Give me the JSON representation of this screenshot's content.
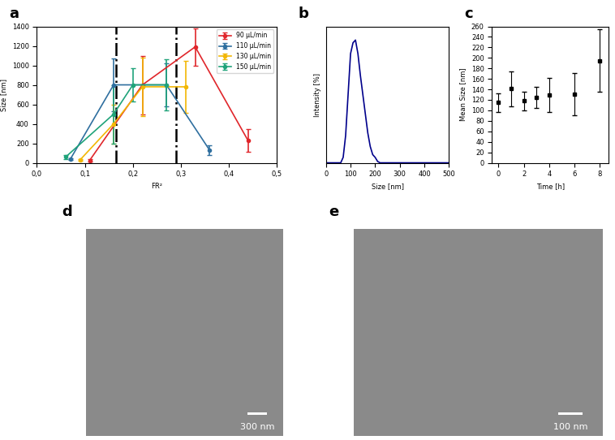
{
  "chart_data": [
    {
      "type": "line",
      "title": "a",
      "x_label": "FR²",
      "y_label": "Size [nm]",
      "xlim": [
        0.0,
        0.5
      ],
      "xticks": [
        {
          "value": 0.0,
          "label": "0,0"
        },
        {
          "value": 0.1,
          "label": "0,1"
        },
        {
          "value": 0.2,
          "label": "0,2"
        },
        {
          "value": 0.3,
          "label": "0,3"
        },
        {
          "value": 0.4,
          "label": "0,4"
        },
        {
          "value": 0.5,
          "label": "0,5"
        }
      ],
      "ylim": [
        0,
        1400
      ],
      "yticks": [
        0,
        200,
        400,
        600,
        800,
        1000,
        1200,
        1400
      ],
      "legend": "upper right",
      "marker": "o",
      "line_style": "solid",
      "reference_lines": [
        0.165,
        0.29
      ],
      "series": [
        {
          "name": "90 µL/min",
          "color": "#e0262b",
          "x": [
            0.11,
            0.22,
            0.33,
            0.44
          ],
          "values": [
            25,
            800,
            1190,
            230
          ],
          "errors": [
            10,
            300,
            190,
            120
          ]
        },
        {
          "name": "110 µL/min",
          "color": "#2f6f9f",
          "x": [
            0.07,
            0.16,
            0.27,
            0.36
          ],
          "values": [
            40,
            800,
            800,
            130
          ],
          "errors": [
            10,
            270,
            220,
            50
          ]
        },
        {
          "name": "130 µL/min",
          "color": "#f2b705",
          "x": [
            0.09,
            0.16,
            0.22,
            0.31
          ],
          "values": [
            30,
            400,
            780,
            780
          ],
          "errors": [
            10,
            200,
            300,
            270
          ]
        },
        {
          "name": "150 µL/min",
          "color": "#1fa37a",
          "x": [
            0.06,
            0.16,
            0.2,
            0.27
          ],
          "values": [
            60,
            500,
            800,
            800
          ],
          "errors": [
            20,
            300,
            170,
            260
          ]
        }
      ]
    },
    {
      "type": "line",
      "title": "b",
      "x_label": "Size [nm]",
      "y_label": "Intensity [%]",
      "xlim": [
        0,
        500
      ],
      "xticks": [
        0,
        100,
        200,
        300,
        400,
        500
      ],
      "ylim": [
        0,
        50
      ],
      "yticks": [],
      "tick_labels": "x",
      "series": [
        {
          "name": "Intensity",
          "color": "#00008b",
          "x": [
            0,
            60,
            70,
            80,
            90,
            100,
            110,
            120,
            130,
            140,
            150,
            160,
            170,
            180,
            190,
            200,
            210,
            220,
            300,
            400,
            500
          ],
          "values": [
            0,
            0,
            2,
            10,
            25,
            40,
            44,
            45,
            40,
            32,
            25,
            18,
            11,
            6,
            3,
            2,
            0.5,
            0,
            0,
            0,
            0
          ]
        }
      ]
    },
    {
      "type": "scatter",
      "title": "c",
      "x_label": "Time [h]",
      "y_label": "Mean Size [nm]",
      "xlim": [
        -0.5,
        8.7
      ],
      "xticks": [
        0,
        2,
        4,
        6,
        8
      ],
      "ylim": [
        0,
        260
      ],
      "yticks": [
        0,
        20,
        40,
        60,
        80,
        100,
        120,
        140,
        160,
        180,
        200,
        220,
        240,
        260
      ],
      "marker": "s",
      "color": "#000000",
      "x": [
        0,
        1,
        2,
        3,
        4,
        6,
        8
      ],
      "values": [
        115,
        141,
        118,
        124,
        129,
        131,
        195
      ],
      "errors": [
        18,
        33,
        18,
        20,
        32,
        40,
        60
      ]
    }
  ],
  "images": [
    {
      "label": "d",
      "scale_bar": "300 nm"
    },
    {
      "label": "e",
      "scale_bar": "100 nm"
    }
  ]
}
